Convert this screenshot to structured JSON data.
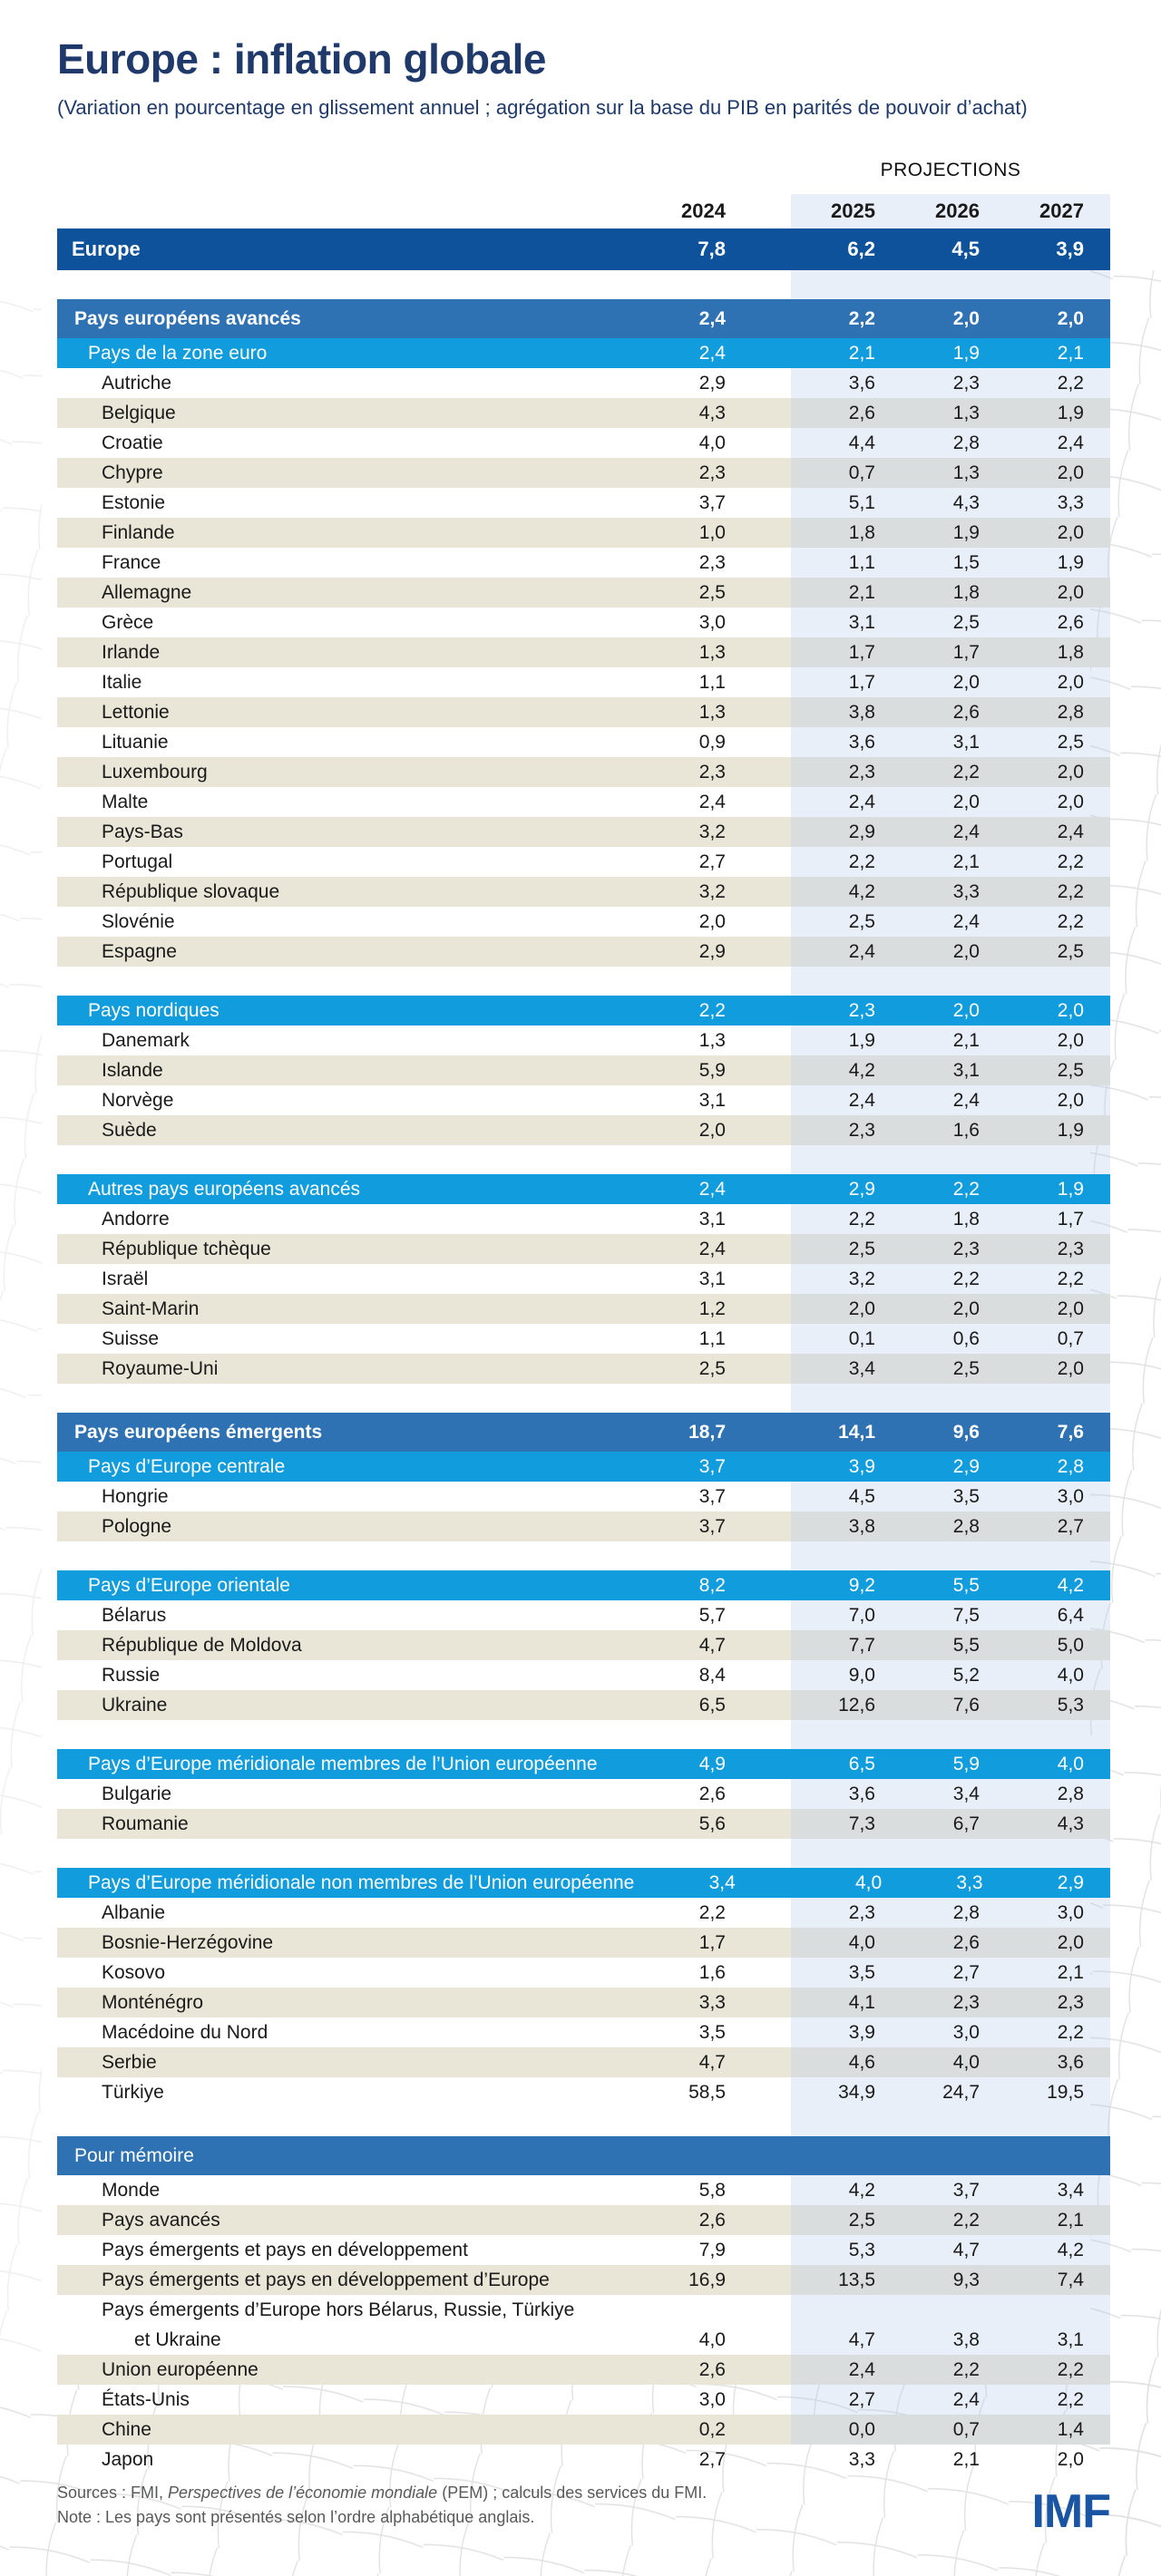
{
  "title": "Europe : inflation globale",
  "subtitle": "(Variation en pourcentage en glissement annuel ; agrégation sur la base du PIB en parités de pouvoir d’achat)",
  "projections_label": "PROJECTIONS",
  "years": [
    "2024",
    "2025",
    "2026",
    "2027"
  ],
  "colors": {
    "europe_row": "#0e529c",
    "section_row": "#2e72b4",
    "subsection_row": "#119ddd",
    "stripe_row": "#e9e5d7",
    "title_text": "#1f3a6a",
    "imf_logo": "#1a55a4"
  },
  "europe": {
    "label": "Europe",
    "values": [
      "7,8",
      "6,2",
      "4,5",
      "3,9"
    ]
  },
  "groups": [
    {
      "headers": [
        {
          "level": 1,
          "label": "Pays européens avancés",
          "values": [
            "2,4",
            "2,2",
            "2,0",
            "2,0"
          ]
        },
        {
          "level": 2,
          "label": "Pays de la zone euro",
          "values": [
            "2,4",
            "2,1",
            "1,9",
            "2,1"
          ]
        }
      ],
      "rows": [
        [
          "Autriche",
          "2,9",
          "3,6",
          "2,3",
          "2,2"
        ],
        [
          "Belgique",
          "4,3",
          "2,6",
          "1,3",
          "1,9"
        ],
        [
          "Croatie",
          "4,0",
          "4,4",
          "2,8",
          "2,4"
        ],
        [
          "Chypre",
          "2,3",
          "0,7",
          "1,3",
          "2,0"
        ],
        [
          "Estonie",
          "3,7",
          "5,1",
          "4,3",
          "3,3"
        ],
        [
          "Finlande",
          "1,0",
          "1,8",
          "1,9",
          "2,0"
        ],
        [
          "France",
          "2,3",
          "1,1",
          "1,5",
          "1,9"
        ],
        [
          "Allemagne",
          "2,5",
          "2,1",
          "1,8",
          "2,0"
        ],
        [
          "Grèce",
          "3,0",
          "3,1",
          "2,5",
          "2,6"
        ],
        [
          "Irlande",
          "1,3",
          "1,7",
          "1,7",
          "1,8"
        ],
        [
          "Italie",
          "1,1",
          "1,7",
          "2,0",
          "2,0"
        ],
        [
          "Lettonie",
          "1,3",
          "3,8",
          "2,6",
          "2,8"
        ],
        [
          "Lituanie",
          "0,9",
          "3,6",
          "3,1",
          "2,5"
        ],
        [
          "Luxembourg",
          "2,3",
          "2,3",
          "2,2",
          "2,0"
        ],
        [
          "Malte",
          "2,4",
          "2,4",
          "2,0",
          "2,0"
        ],
        [
          "Pays-Bas",
          "3,2",
          "2,9",
          "2,4",
          "2,4"
        ],
        [
          "Portugal",
          "2,7",
          "2,2",
          "2,1",
          "2,2"
        ],
        [
          "République slovaque",
          "3,2",
          "4,2",
          "3,3",
          "2,2"
        ],
        [
          "Slovénie",
          "2,0",
          "2,5",
          "2,4",
          "2,2"
        ],
        [
          "Espagne",
          "2,9",
          "2,4",
          "2,0",
          "2,5"
        ]
      ]
    },
    {
      "headers": [
        {
          "level": 2,
          "label": "Pays nordiques",
          "values": [
            "2,2",
            "2,3",
            "2,0",
            "2,0"
          ]
        }
      ],
      "rows": [
        [
          "Danemark",
          "1,3",
          "1,9",
          "2,1",
          "2,0"
        ],
        [
          "Islande",
          "5,9",
          "4,2",
          "3,1",
          "2,5"
        ],
        [
          "Norvège",
          "3,1",
          "2,4",
          "2,4",
          "2,0"
        ],
        [
          "Suède",
          "2,0",
          "2,3",
          "1,6",
          "1,9"
        ]
      ]
    },
    {
      "headers": [
        {
          "level": 2,
          "label": "Autres pays européens avancés",
          "values": [
            "2,4",
            "2,9",
            "2,2",
            "1,9"
          ]
        }
      ],
      "rows": [
        [
          "Andorre",
          "3,1",
          "2,2",
          "1,8",
          "1,7"
        ],
        [
          "République tchèque",
          "2,4",
          "2,5",
          "2,3",
          "2,3"
        ],
        [
          "Israël",
          "3,1",
          "3,2",
          "2,2",
          "2,2"
        ],
        [
          "Saint-Marin",
          "1,2",
          "2,0",
          "2,0",
          "2,0"
        ],
        [
          "Suisse",
          "1,1",
          "0,1",
          "0,6",
          "0,7"
        ],
        [
          "Royaume-Uni",
          "2,5",
          "3,4",
          "2,5",
          "2,0"
        ]
      ]
    },
    {
      "headers": [
        {
          "level": 1,
          "label": "Pays européens émergents",
          "values": [
            "18,7",
            "14,1",
            "9,6",
            "7,6"
          ]
        },
        {
          "level": 2,
          "label": "Pays d’Europe centrale",
          "values": [
            "3,7",
            "3,9",
            "2,9",
            "2,8"
          ]
        }
      ],
      "rows": [
        [
          "Hongrie",
          "3,7",
          "4,5",
          "3,5",
          "3,0"
        ],
        [
          "Pologne",
          "3,7",
          "3,8",
          "2,8",
          "2,7"
        ]
      ]
    },
    {
      "headers": [
        {
          "level": 2,
          "label": "Pays d’Europe orientale",
          "values": [
            "8,2",
            "9,2",
            "5,5",
            "4,2"
          ]
        }
      ],
      "rows": [
        [
          "Bélarus",
          "5,7",
          "7,0",
          "7,5",
          "6,4"
        ],
        [
          "République de Moldova",
          "4,7",
          "7,7",
          "5,5",
          "5,0"
        ],
        [
          "Russie",
          "8,4",
          "9,0",
          "5,2",
          "4,0"
        ],
        [
          "Ukraine",
          "6,5",
          "12,6",
          "7,6",
          "5,3"
        ]
      ]
    },
    {
      "headers": [
        {
          "level": 2,
          "label": "Pays d’Europe méridionale membres de l’Union européenne",
          "values": [
            "4,9",
            "6,5",
            "5,9",
            "4,0"
          ]
        }
      ],
      "rows": [
        [
          "Bulgarie",
          "2,6",
          "3,6",
          "3,4",
          "2,8"
        ],
        [
          "Roumanie",
          "5,6",
          "7,3",
          "6,7",
          "4,3"
        ]
      ]
    },
    {
      "headers": [
        {
          "level": 2,
          "label": "Pays d’Europe méridionale non membres de l’Union européenne",
          "values": [
            "3,4",
            "4,0",
            "3,3",
            "2,9"
          ]
        }
      ],
      "rows": [
        [
          "Albanie",
          "2,2",
          "2,3",
          "2,8",
          "3,0"
        ],
        [
          "Bosnie-Herzégovine",
          "1,7",
          "4,0",
          "2,6",
          "2,0"
        ],
        [
          "Kosovo",
          "1,6",
          "3,5",
          "2,7",
          "2,1"
        ],
        [
          "Monténégro",
          "3,3",
          "4,1",
          "2,3",
          "2,3"
        ],
        [
          "Macédoine du Nord",
          "3,5",
          "3,9",
          "3,0",
          "2,2"
        ],
        [
          "Serbie",
          "4,7",
          "4,6",
          "4,0",
          "3,6"
        ],
        [
          "Türkiye",
          "58,5",
          "34,9",
          "24,7",
          "19,5"
        ]
      ]
    },
    {
      "headers": [
        {
          "level": 1,
          "label": "Pour mémoire",
          "values": null,
          "bold": false
        }
      ],
      "rows": [
        [
          "Monde",
          "5,8",
          "4,2",
          "3,7",
          "3,4"
        ],
        [
          "Pays avancés",
          "2,6",
          "2,5",
          "2,2",
          "2,1"
        ],
        [
          "Pays émergents et pays en développement",
          "7,9",
          "5,3",
          "4,7",
          "4,2"
        ],
        [
          "Pays émergents et pays en développement d’Europe",
          "16,9",
          "13,5",
          "9,3",
          "7,4"
        ],
        {
          "label_lines": [
            "Pays émergents d’Europe hors Bélarus, Russie, Türkiye",
            "et Ukraine"
          ],
          "values": [
            "4,0",
            "4,7",
            "3,8",
            "3,1"
          ]
        },
        [
          "Union européenne",
          "2,6",
          "2,4",
          "2,2",
          "2,2"
        ],
        [
          "États-Unis",
          "3,0",
          "2,7",
          "2,4",
          "2,2"
        ],
        [
          "Chine",
          "0,2",
          "0,0",
          "0,7",
          "1,4"
        ],
        [
          "Japon",
          "2,7",
          "3,3",
          "2,1",
          "2,0"
        ]
      ]
    }
  ],
  "footer": {
    "sources_prefix": "Sources : FMI, ",
    "sources_italic": "Perspectives de l’économie mondiale",
    "sources_suffix": " (PEM) ; calculs des services du FMI.",
    "note": "Note : Les pays sont présentés selon l’ordre alphabétique anglais.",
    "logo": "IMF"
  }
}
